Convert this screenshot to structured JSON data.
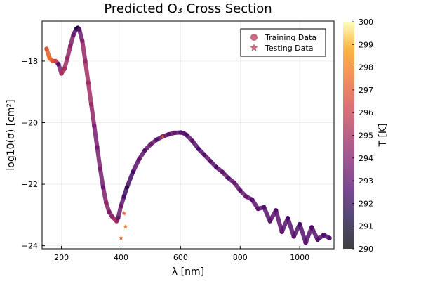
{
  "chart_data": {
    "type": "scatter",
    "title": "Predicted O₃ Cross Section",
    "xlabel": "λ [nm]",
    "ylabel": "log10(σ) [cm²]",
    "xlim": [
      135,
      1115
    ],
    "ylim": [
      -24.1,
      -16.7
    ],
    "xticks": [
      200,
      400,
      600,
      800,
      1000
    ],
    "yticks": [
      -24,
      -22,
      -20,
      -18
    ],
    "xtick_labels": [
      "200",
      "400",
      "600",
      "800",
      "1000"
    ],
    "ytick_labels": [
      "−24",
      "−22",
      "−20",
      "−18"
    ],
    "grid": true,
    "legend_position": "top-right",
    "colorbar": {
      "label": "T [K]",
      "range": [
        290,
        300
      ],
      "ticks": [
        290,
        291,
        292,
        293,
        294,
        295,
        296,
        297,
        298,
        299,
        300
      ],
      "tick_labels": [
        "290",
        "291",
        "292",
        "293",
        "294",
        "295",
        "296",
        "297",
        "298",
        "299",
        "300"
      ],
      "colormap": "inferno"
    },
    "series": [
      {
        "name": "Training Data",
        "marker": "circle",
        "x": [
          150,
          160,
          170,
          180,
          190,
          200,
          210,
          220,
          230,
          240,
          250,
          255,
          260,
          270,
          280,
          290,
          300,
          310,
          320,
          330,
          340,
          350,
          360,
          370,
          380,
          385,
          390,
          400,
          410,
          420,
          440,
          460,
          480,
          500,
          520,
          540,
          560,
          580,
          600,
          610,
          620,
          640,
          660,
          680,
          700,
          720,
          740,
          760,
          780,
          800,
          820,
          840,
          860,
          880,
          900,
          920,
          940,
          960,
          980,
          1000,
          1020,
          1040,
          1060,
          1080,
          1100
        ],
        "y": [
          -17.6,
          -17.9,
          -18.0,
          -18.0,
          -18.1,
          -18.4,
          -18.25,
          -17.9,
          -17.5,
          -17.15,
          -16.95,
          -16.92,
          -16.97,
          -17.35,
          -18.0,
          -18.7,
          -19.4,
          -20.1,
          -20.8,
          -21.5,
          -22.1,
          -22.6,
          -22.9,
          -23.05,
          -23.15,
          -23.2,
          -23.1,
          -22.7,
          -22.4,
          -22.1,
          -21.6,
          -21.2,
          -20.9,
          -20.7,
          -20.55,
          -20.45,
          -20.38,
          -20.33,
          -20.32,
          -20.34,
          -20.4,
          -20.6,
          -20.85,
          -21.05,
          -21.25,
          -21.45,
          -21.6,
          -21.8,
          -21.95,
          -22.2,
          -22.4,
          -22.5,
          -22.8,
          -22.75,
          -23.2,
          -22.85,
          -23.55,
          -23.1,
          -23.7,
          -23.3,
          -23.9,
          -23.4,
          -23.8,
          -23.65,
          -23.75
        ],
        "t": [
          296.8,
          297.5,
          296.9,
          296.2,
          292.5,
          295.2,
          295.0,
          294.6,
          294.3,
          293.5,
          292.0,
          291.0,
          292.8,
          294.2,
          294.8,
          295.0,
          294.7,
          293.9,
          293.5,
          294.0,
          293.2,
          294.5,
          293.8,
          294.4,
          295.2,
          294.9,
          293.1,
          293.6,
          292.4,
          291.8,
          292.6,
          293.2,
          292.9,
          293.4,
          292.8,
          293.0,
          292.9,
          293.3,
          292.7,
          293.0,
          292.6,
          293.1,
          292.5,
          292.8,
          293.0,
          292.6,
          293.2,
          292.7,
          293.4,
          293.0,
          293.3,
          292.8,
          293.1,
          292.6,
          293.0,
          292.7,
          293.2,
          292.5,
          292.9,
          292.4,
          293.0,
          292.6,
          292.8,
          292.5,
          292.7
        ]
      },
      {
        "name": "Testing Data",
        "marker": "star",
        "x": [
          400,
          410,
          415,
          540
        ],
        "y": [
          -23.75,
          -22.95,
          -23.38,
          -20.45
        ],
        "t": [
          297.4,
          297.0,
          297.8,
          297.2
        ]
      }
    ]
  }
}
